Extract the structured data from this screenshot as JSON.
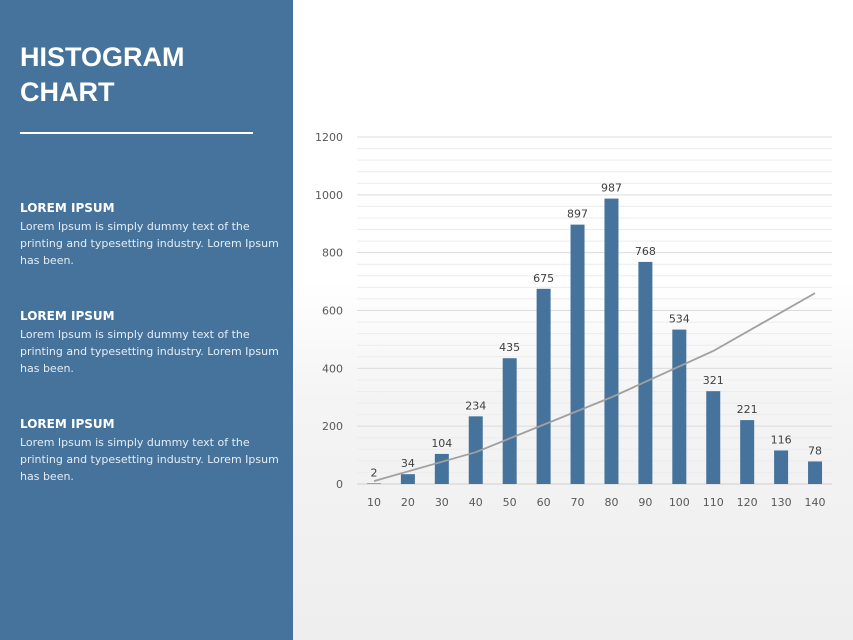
{
  "panel": {
    "title_line1": "HISTOGRAM",
    "title_line2": "CHART",
    "sections": [
      {
        "heading": "LOREM IPSUM",
        "body": "Lorem Ipsum is simply dummy text of the printing and typesetting industry. Lorem Ipsum has been."
      },
      {
        "heading": "LOREM IPSUM",
        "body": "Lorem Ipsum is simply dummy text of the printing and typesetting industry. Lorem Ipsum has been."
      },
      {
        "heading": "LOREM IPSUM",
        "body": "Lorem Ipsum is simply dummy text of the printing and typesetting industry. Lorem Ipsum has been."
      }
    ],
    "color": "#45739b"
  },
  "chart_data": {
    "type": "bar",
    "categories": [
      "10",
      "20",
      "30",
      "40",
      "50",
      "60",
      "70",
      "80",
      "90",
      "100",
      "110",
      "120",
      "130",
      "140"
    ],
    "values": [
      2,
      34,
      104,
      234,
      435,
      675,
      897,
      987,
      768,
      534,
      321,
      221,
      116,
      78
    ],
    "ylim": [
      0,
      1200
    ],
    "yticks": [
      0,
      200,
      400,
      600,
      800,
      1000,
      1200
    ],
    "grid": true,
    "bar_color": "#45739b",
    "data_labels": true,
    "trendline": {
      "color": "#a0a0a0",
      "x": [
        "10",
        "40",
        "80",
        "110",
        "140"
      ],
      "y": [
        10,
        110,
        300,
        460,
        660
      ]
    }
  }
}
